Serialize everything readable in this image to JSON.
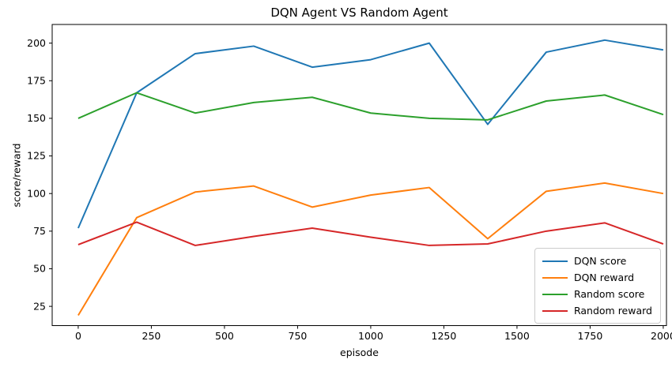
{
  "figure": {
    "background": "#ffffff",
    "axes_color": "#000000"
  },
  "chart_data": {
    "type": "line",
    "title": "DQN Agent VS Random Agent",
    "xlabel": "episode",
    "ylabel": "score/reward",
    "x": [
      0,
      200,
      400,
      600,
      800,
      1000,
      1200,
      1400,
      1600,
      1800,
      2000
    ],
    "series": [
      {
        "name": "DQN score",
        "color": "#1f77b4",
        "values": [
          77,
          167,
          193,
          198,
          184,
          189,
          200,
          146,
          194,
          202,
          195.5
        ]
      },
      {
        "name": "DQN reward",
        "color": "#ff7f0e",
        "values": [
          19,
          84,
          101,
          105,
          91,
          99,
          104,
          70,
          101.5,
          107,
          100
        ]
      },
      {
        "name": "Random score",
        "color": "#2ca02c",
        "values": [
          150,
          167,
          153.5,
          160.5,
          164,
          153.5,
          150,
          149,
          161.5,
          165.5,
          152.5
        ]
      },
      {
        "name": "Random reward",
        "color": "#d62728",
        "values": [
          66,
          81,
          65.5,
          71.5,
          77,
          71,
          65.5,
          66.5,
          75,
          80.5,
          66.5
        ]
      }
    ],
    "x_ticks": [
      0,
      250,
      500,
      750,
      1000,
      1250,
      1500,
      1750,
      2000
    ],
    "y_ticks": [
      25,
      50,
      75,
      100,
      125,
      150,
      175,
      200
    ],
    "xlim": [
      -89,
      2011
    ],
    "ylim": [
      12.2,
      212.4
    ],
    "grid": false,
    "legend_position": "lower right",
    "line_width": 2
  }
}
